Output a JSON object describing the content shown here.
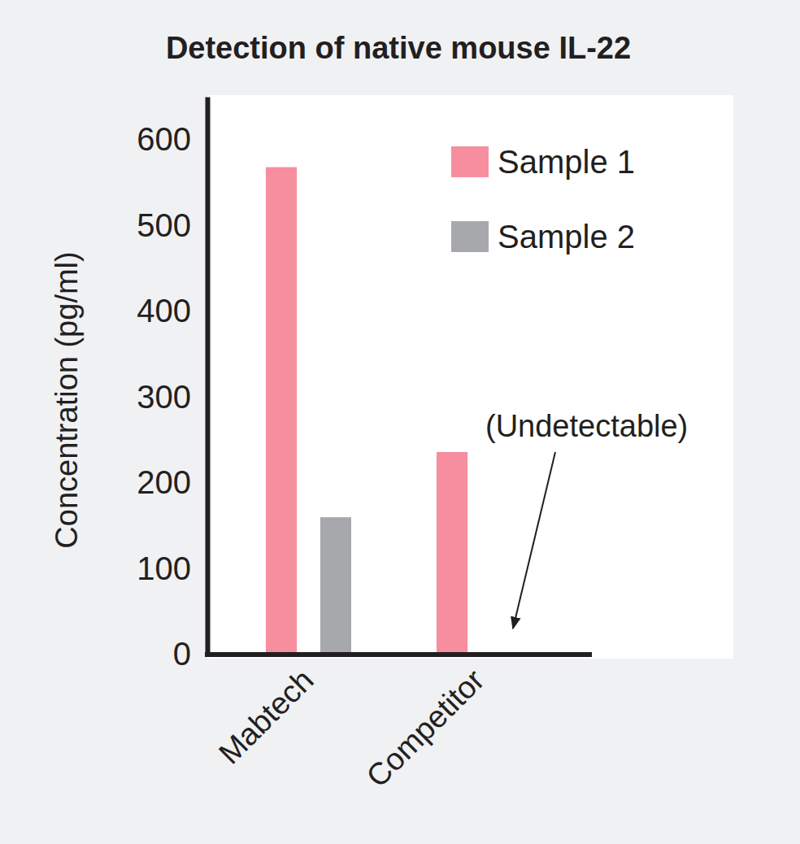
{
  "chart_data": {
    "type": "bar",
    "title": "Detection of native mouse IL-22",
    "y_label": "Concentration (pg/ml)",
    "categories": [
      "Mabtech",
      "Competitor"
    ],
    "series": [
      {
        "name": "Sample 1",
        "color": "#f68e9f",
        "values": [
          568,
          236
        ]
      },
      {
        "name": "Sample 2",
        "color": "#a7a8ac",
        "values": [
          160,
          null
        ]
      }
    ],
    "ylim": [
      0,
      650
    ],
    "yticks": [
      0,
      100,
      200,
      300,
      400,
      500,
      600
    ],
    "grid": false,
    "legend": "upper right",
    "annotation": "(Undetectable)"
  }
}
